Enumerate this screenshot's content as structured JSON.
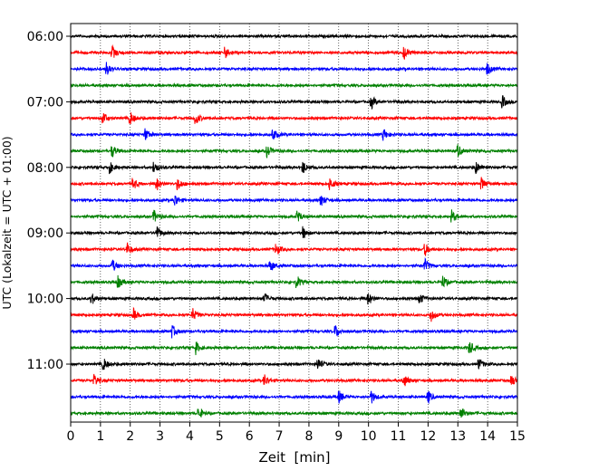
{
  "chart_data": {
    "type": "line",
    "subtype": "helicorder",
    "title": "",
    "xlabel": "Zeit  [min]",
    "ylabel": "UTC (Lokalzeit = UTC + 01:00)",
    "xlim": [
      0,
      15
    ],
    "x_ticks": [
      "0",
      "1",
      "2",
      "3",
      "4",
      "5",
      "6",
      "7",
      "8",
      "9",
      "10",
      "11",
      "12",
      "13",
      "14",
      "15"
    ],
    "y_tick_labels": [
      "06:00",
      "07:00",
      "08:00",
      "09:00",
      "10:00",
      "11:00"
    ],
    "grid": "vertical dotted lines at each minute",
    "trace_interval_minutes": 15,
    "colors": [
      "#000000",
      "#ff0000",
      "#0000ff",
      "#008000"
    ],
    "traces": [
      {
        "time": "06:00",
        "color": "#000000",
        "events": []
      },
      {
        "time": "06:15",
        "color": "#ff0000",
        "events": [
          1.4,
          5.2,
          11.2
        ]
      },
      {
        "time": "06:30",
        "color": "#0000ff",
        "events": [
          1.2,
          14.0
        ]
      },
      {
        "time": "06:45",
        "color": "#008000",
        "events": []
      },
      {
        "time": "07:00",
        "color": "#000000",
        "events": [
          10.1,
          14.5
        ]
      },
      {
        "time": "07:15",
        "color": "#ff0000",
        "events": [
          1.1,
          2.0,
          4.2
        ]
      },
      {
        "time": "07:30",
        "color": "#0000ff",
        "events": [
          2.5,
          6.8,
          10.5
        ]
      },
      {
        "time": "07:45",
        "color": "#008000",
        "events": [
          1.4,
          6.6,
          13.0
        ]
      },
      {
        "time": "08:00",
        "color": "#000000",
        "events": [
          1.3,
          2.8,
          7.8,
          13.6
        ]
      },
      {
        "time": "08:15",
        "color": "#ff0000",
        "events": [
          2.1,
          2.9,
          3.6,
          8.7,
          13.8
        ]
      },
      {
        "time": "08:30",
        "color": "#0000ff",
        "events": [
          3.5,
          8.4
        ]
      },
      {
        "time": "08:45",
        "color": "#008000",
        "events": [
          2.8,
          7.6,
          12.8
        ]
      },
      {
        "time": "09:00",
        "color": "#000000",
        "events": [
          2.9,
          7.8
        ]
      },
      {
        "time": "09:15",
        "color": "#ff0000",
        "events": [
          1.9,
          6.9,
          11.9
        ]
      },
      {
        "time": "09:30",
        "color": "#0000ff",
        "events": [
          1.4,
          6.7,
          11.9
        ]
      },
      {
        "time": "09:45",
        "color": "#008000",
        "events": [
          1.6,
          7.6,
          12.5
        ]
      },
      {
        "time": "10:00",
        "color": "#000000",
        "events": [
          0.7,
          6.5,
          10.0,
          11.7
        ]
      },
      {
        "time": "10:15",
        "color": "#ff0000",
        "events": [
          2.1,
          4.1,
          12.1
        ]
      },
      {
        "time": "10:30",
        "color": "#0000ff",
        "events": [
          3.4,
          8.9
        ]
      },
      {
        "time": "10:45",
        "color": "#008000",
        "events": [
          4.2,
          13.4
        ]
      },
      {
        "time": "11:00",
        "color": "#000000",
        "events": [
          1.1,
          8.3,
          13.7
        ]
      },
      {
        "time": "11:15",
        "color": "#ff0000",
        "events": [
          0.8,
          6.5,
          11.2,
          14.8
        ]
      },
      {
        "time": "11:30",
        "color": "#0000ff",
        "events": [
          9.0,
          10.1,
          12.0
        ]
      },
      {
        "time": "11:45",
        "color": "#008000",
        "events": [
          4.3,
          13.1
        ]
      }
    ]
  }
}
